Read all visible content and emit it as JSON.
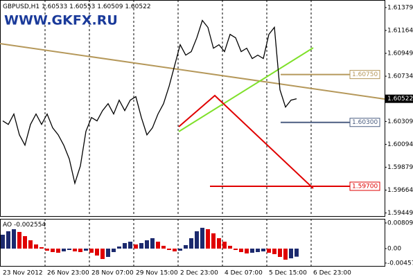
{
  "chart_data": [
    {
      "type": "line",
      "symbol": "GBPUSD,H1",
      "ohlc": [
        1.60533,
        1.60553,
        1.60509,
        1.60522
      ],
      "watermark": "WWW.GKFX.RU",
      "categories": [
        "23 Nov 2012",
        null,
        null,
        null,
        null,
        null,
        null,
        null,
        "26 Nov 23:00",
        null,
        null,
        null,
        null,
        null,
        null,
        null,
        "28 Nov 07:00",
        null,
        null,
        null,
        null,
        null,
        null,
        null,
        "29 Nov 15:00",
        null,
        null,
        null,
        null,
        null,
        null,
        null,
        "2 Dec 23:00",
        null,
        null,
        null,
        null,
        null,
        null,
        null,
        "4 Dec 07:00",
        null,
        null,
        null,
        null,
        null,
        null,
        null,
        "5 Dec 15:00",
        null,
        null,
        null,
        null,
        null,
        null,
        null,
        "6 Dec 23:00",
        null,
        null,
        null,
        null,
        null,
        null,
        null,
        null,
        null,
        null,
        null,
        null,
        null
      ],
      "series": [
        {
          "name": "GBPUSD",
          "color": "#000000",
          "values": [
            1.60314,
            1.60281,
            1.60379,
            1.60183,
            1.60086,
            1.60281,
            1.60379,
            1.60281,
            1.60379,
            1.60249,
            1.60183,
            1.60086,
            1.59956,
            1.59728,
            1.59891,
            1.60216,
            1.60346,
            1.60314,
            1.60411,
            1.60476,
            1.60379,
            1.60509,
            1.60411,
            1.60509,
            1.60542,
            1.60346,
            1.60183,
            1.60249,
            1.60379,
            1.60476,
            1.60639,
            1.60834,
            1.6103,
            1.60932,
            1.60965,
            1.61095,
            1.61258,
            1.61193,
            1.60997,
            1.6103,
            1.60965,
            1.61127,
            1.61095,
            1.60965,
            1.60997,
            1.609,
            1.60932,
            1.609,
            1.61127,
            1.61193,
            1.60607,
            1.60444,
            1.60509,
            1.60522,
            null,
            null,
            null,
            null,
            null,
            null,
            null,
            null,
            null,
            null,
            null,
            null,
            null,
            null,
            null,
            null
          ]
        }
      ],
      "ylim": [
        1.5942,
        1.6145
      ],
      "yticks": [
        1.61379,
        1.61164,
        1.60949,
        1.60734,
        1.60309,
        1.60094,
        1.59879,
        1.59664,
        1.59449
      ],
      "last_price": 1.60522,
      "levels": [
        {
          "value": 1.6075,
          "label": "1.60750",
          "color": "#b5985a"
        },
        {
          "value": 1.603,
          "label": "1.60300",
          "color": "#4a5d80"
        },
        {
          "value": 1.597,
          "label": "1.59700",
          "color": "#e00000"
        }
      ],
      "grid": true
    },
    {
      "type": "bar",
      "name": "AO",
      "last_value": -0.002554,
      "up_color": "#1c2a6e",
      "down_color": "#e00000",
      "values": [
        0.00438,
        0.00548,
        0.00613,
        0.00526,
        0.00394,
        0.00263,
        0.00131,
        0.00044,
        -0.00066,
        -0.0011,
        -0.00131,
        -0.00088,
        -0.00044,
        -0.00088,
        -0.0011,
        -0.00066,
        -0.00131,
        -0.00219,
        -0.00329,
        -0.00263,
        -0.0011,
        0.00066,
        0.00175,
        0.00219,
        0.00131,
        0.00175,
        0.00263,
        0.00329,
        0.00219,
        0.00088,
        -0.00044,
        -0.00088,
        -0.00066,
        0.0011,
        0.00329,
        0.00548,
        0.00657,
        0.00613,
        0.00482,
        0.00329,
        0.00219,
        0.00088,
        -0.00044,
        -0.0011,
        -0.00153,
        -0.00131,
        -0.0011,
        -0.00088,
        -0.00131,
        -0.00175,
        -0.00263,
        -0.0035,
        -0.00307,
        -0.002554,
        null,
        null,
        null,
        null,
        null,
        null,
        null,
        null,
        null,
        null,
        null,
        null,
        null,
        null,
        null,
        null
      ],
      "ylim": [
        -0.00547,
        0.0094
      ],
      "yticks": [
        0.008094,
        {
          "value": 0,
          "label": "0.00"
        },
        -0.00457
      ]
    }
  ]
}
